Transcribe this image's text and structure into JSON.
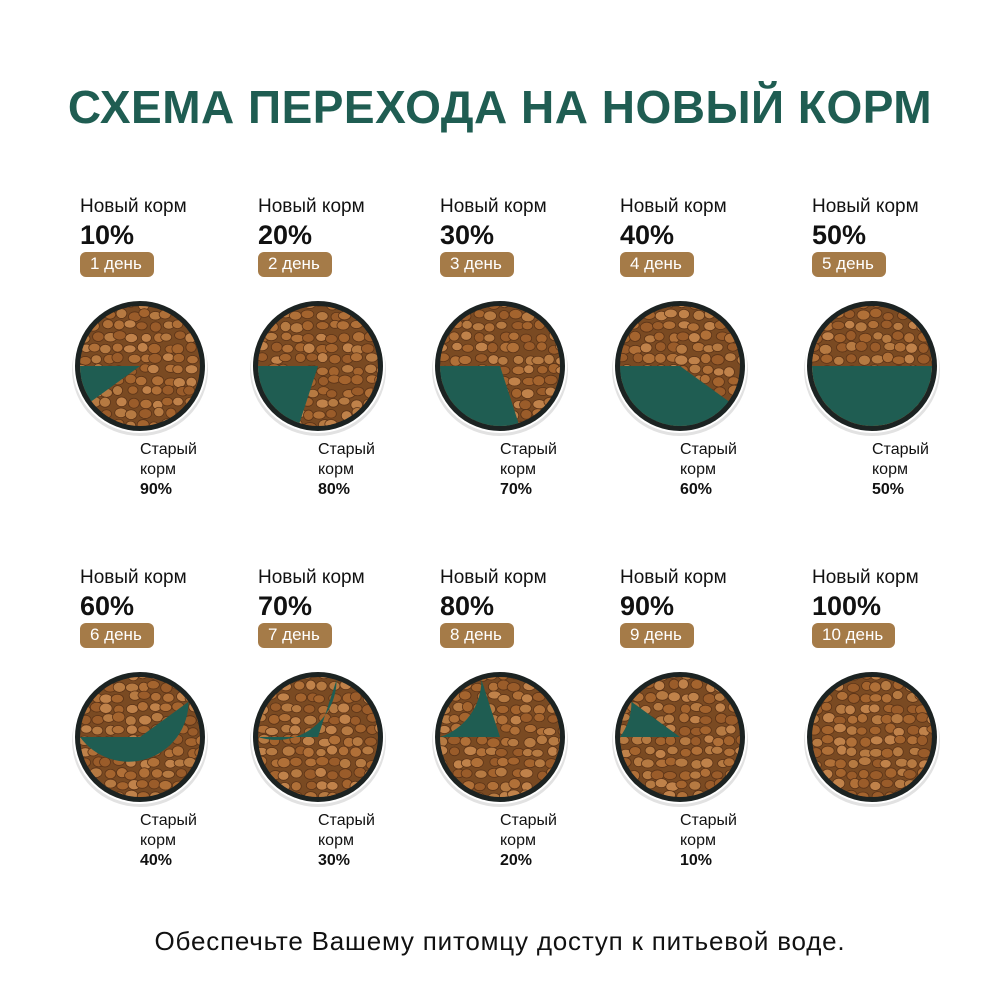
{
  "title": "СХЕМА ПЕРЕХОДА НА НОВЫЙ КОРМ",
  "footer": "Обеспечьте Вашему питомцу доступ к питьевой воде.",
  "colors": {
    "title": "#1f5d52",
    "old_food": "#1f5d52",
    "badge": "#a57b48",
    "kibble": "#a86a34",
    "bowl_rim": "#1c2322"
  },
  "steps": [
    {
      "new_label": "Новый корм",
      "new_percent": "10%",
      "day": "1 день",
      "old_label_1": "Старый",
      "old_label_2": "корм",
      "old_percent": "90%",
      "new_fraction": 0.1
    },
    {
      "new_label": "Новый корм",
      "new_percent": "20%",
      "day": "2 день",
      "old_label_1": "Старый",
      "old_label_2": "корм",
      "old_percent": "80%",
      "new_fraction": 0.2
    },
    {
      "new_label": "Новый корм",
      "new_percent": "30%",
      "day": "3 день",
      "old_label_1": "Старый",
      "old_label_2": "корм",
      "old_percent": "70%",
      "new_fraction": 0.3
    },
    {
      "new_label": "Новый корм",
      "new_percent": "40%",
      "day": "4 день",
      "old_label_1": "Старый",
      "old_label_2": "корм",
      "old_percent": "60%",
      "new_fraction": 0.4
    },
    {
      "new_label": "Новый корм",
      "new_percent": "50%",
      "day": "5 день",
      "old_label_1": "Старый",
      "old_label_2": "корм",
      "old_percent": "50%",
      "new_fraction": 0.5
    },
    {
      "new_label": "Новый корм",
      "new_percent": "60%",
      "day": "6 день",
      "old_label_1": "Старый",
      "old_label_2": "корм",
      "old_percent": "40%",
      "new_fraction": 0.6
    },
    {
      "new_label": "Новый корм",
      "new_percent": "70%",
      "day": "7 день",
      "old_label_1": "Старый",
      "old_label_2": "корм",
      "old_percent": "30%",
      "new_fraction": 0.7
    },
    {
      "new_label": "Новый корм",
      "new_percent": "80%",
      "day": "8 день",
      "old_label_1": "Старый",
      "old_label_2": "корм",
      "old_percent": "20%",
      "new_fraction": 0.8
    },
    {
      "new_label": "Новый корм",
      "new_percent": "90%",
      "day": "9 день",
      "old_label_1": "Старый",
      "old_label_2": "корм",
      "old_percent": "10%",
      "new_fraction": 0.9
    },
    {
      "new_label": "Новый корм",
      "new_percent": "100%",
      "day": "10 день",
      "new_fraction": 1.0
    }
  ]
}
